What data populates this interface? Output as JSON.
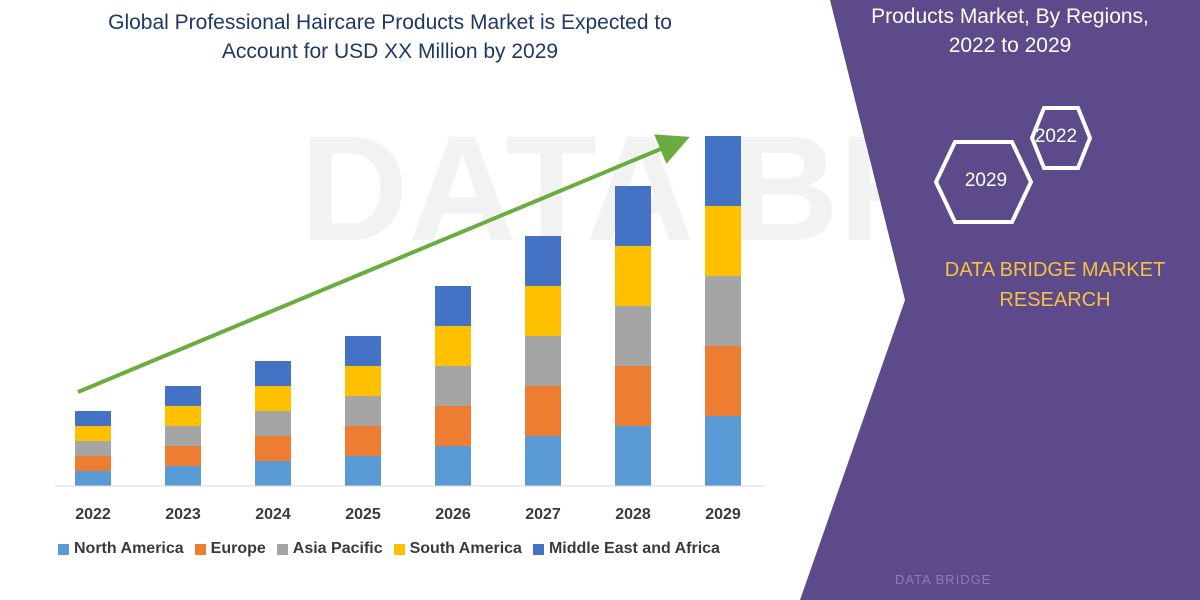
{
  "title": {
    "line1": "Global Professional Haircare Products Market is Expected to",
    "line2": "Account for USD XX Million by 2029"
  },
  "side_panel": {
    "title_line1": "Products Market, By Regions,",
    "title_line2": "2022 to 2029",
    "hex_top": "2022",
    "hex_bottom": "2029",
    "brand_line1": "DATA BRIDGE MARKET",
    "brand_line2": "RESEARCH",
    "logo_text": "DATA BRIDGE",
    "panel_color": "#5c4a8a",
    "brand_color": "#f5c242"
  },
  "chart_data": {
    "type": "bar",
    "stacked": true,
    "categories": [
      "2022",
      "2023",
      "2024",
      "2025",
      "2026",
      "2027",
      "2028",
      "2029"
    ],
    "series": [
      {
        "name": "North America",
        "color": "#5b9bd5",
        "values": [
          15,
          20,
          25,
          30,
          40,
          50,
          60,
          70
        ]
      },
      {
        "name": "Europe",
        "color": "#ed7d31",
        "values": [
          15,
          20,
          25,
          30,
          40,
          50,
          60,
          70
        ]
      },
      {
        "name": "Asia Pacific",
        "color": "#a5a5a5",
        "values": [
          15,
          20,
          25,
          30,
          40,
          50,
          60,
          70
        ]
      },
      {
        "name": "South America",
        "color": "#ffc000",
        "values": [
          15,
          20,
          25,
          30,
          40,
          50,
          60,
          70
        ]
      },
      {
        "name": "Middle East and Africa",
        "color": "#4472c4",
        "values": [
          15,
          20,
          25,
          30,
          40,
          50,
          60,
          70
        ]
      }
    ],
    "ylim": [
      0,
      350
    ],
    "grid": false,
    "legend_position": "bottom",
    "trend_arrow_color": "#6aac3f"
  }
}
